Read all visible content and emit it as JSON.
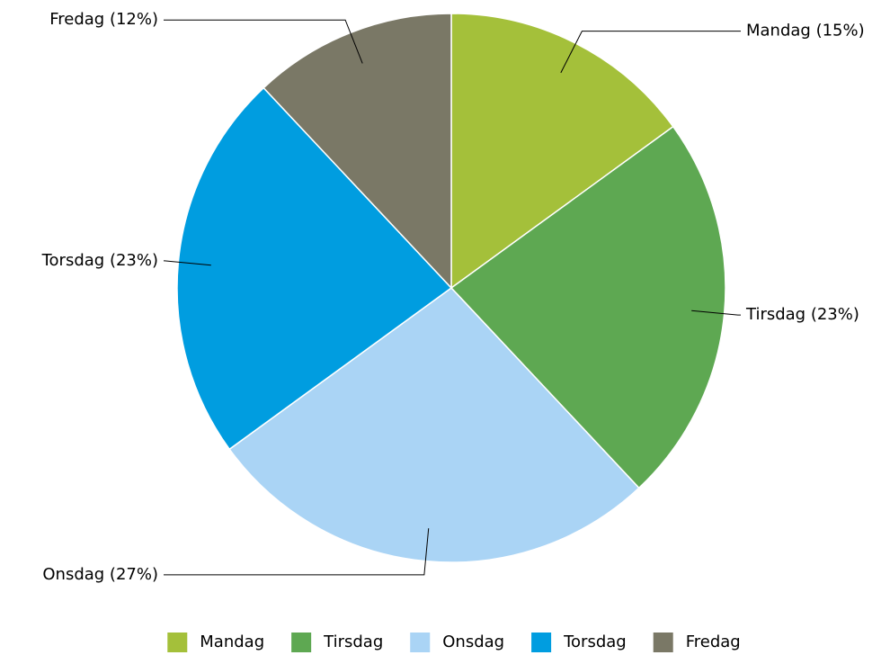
{
  "chart_data": {
    "type": "pie",
    "categories": [
      "Mandag",
      "Tirsdag",
      "Onsdag",
      "Torsdag",
      "Fredag"
    ],
    "values": [
      15,
      23,
      27,
      23,
      12
    ],
    "value_labels": [
      "Mandag (15%)",
      "Tirsdag (23%)",
      "Onsdag (27%)",
      "Torsdag (23%)",
      "Fredag (12%)"
    ],
    "colors": [
      "#a4c03a",
      "#5ea852",
      "#aad4f5",
      "#009de0",
      "#7a7866"
    ],
    "legend": "bottom"
  }
}
